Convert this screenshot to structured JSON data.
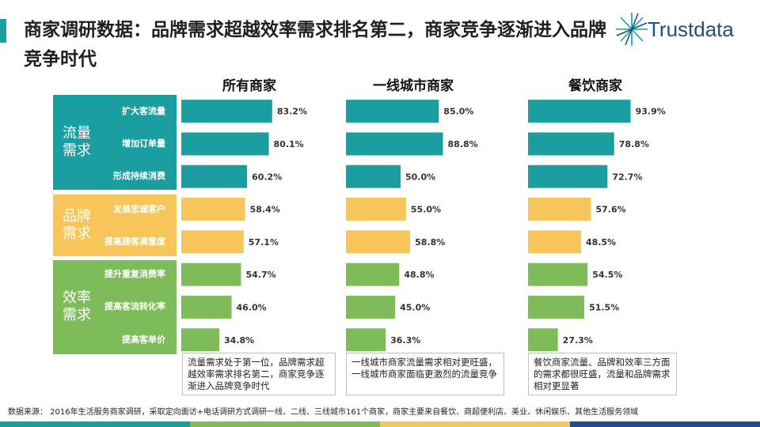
{
  "title": "商家调研数据：品牌需求超越效率需求排名第二，商家竞争逐渐进入品牌竞争时代",
  "logo": {
    "text": "Trustdata"
  },
  "groups": [
    {
      "name": "流量\n需求",
      "color": "#1a9ea0",
      "items": [
        "扩大客流量",
        "增加订单量",
        "形成持续消费"
      ]
    },
    {
      "name": "品牌\n需求",
      "color": "#f7c55a",
      "items": [
        "发展忠诚客户",
        "提高顾客满意度"
      ]
    },
    {
      "name": "效率\n需求",
      "color": "#7ebc59",
      "items": [
        "提升重复消费率",
        "提高客流转化率",
        "提高客单价"
      ]
    }
  ],
  "chart_data": {
    "type": "bar",
    "orientation": "horizontal",
    "categories": [
      "扩大客流量",
      "增加订单量",
      "形成持续消费",
      "发展忠诚客户",
      "提高顾客满意度",
      "提升重复消费率",
      "提高客流转化率",
      "提高客单价"
    ],
    "category_groups": [
      "流量需求",
      "流量需求",
      "流量需求",
      "品牌需求",
      "品牌需求",
      "效率需求",
      "效率需求",
      "效率需求"
    ],
    "unit": "%",
    "series": [
      {
        "name": "所有商家",
        "values": [
          83.2,
          80.1,
          60.2,
          58.4,
          57.1,
          54.7,
          46.0,
          34.8
        ]
      },
      {
        "name": "一线城市商家",
        "values": [
          85.0,
          88.8,
          50.0,
          55.0,
          58.8,
          48.8,
          45.0,
          36.3
        ]
      },
      {
        "name": "餐饮商家",
        "values": [
          93.9,
          78.8,
          72.7,
          57.6,
          48.5,
          54.5,
          51.5,
          27.3
        ]
      }
    ],
    "colors": {
      "流量需求": "#1a9ea0",
      "品牌需求": "#f7c55a",
      "效率需求": "#7ebc59"
    }
  },
  "notes": [
    "流量需求处于第一位，品牌需求超越效率需求排名第二，商家竞争逐渐进入品牌竞争时代",
    "一线城市商家流量需求相对更旺盛，一线城市商家面临更激烈的流量竞争",
    "餐饮商家流量、品牌和效率三方面的需求都很旺盛，流量和品牌需求相对更显著"
  ],
  "footer": "数据来源：  2016年生活服务商家调研，采取定向面访+电话调研方式调研一线、二线、三线城市161个商家，商家主要来自餐饮、商超便利店、美业、休闲娱乐、其他生活服务领域",
  "stripe_colors": [
    "#1a9ea0",
    "#7ebc59",
    "#f7c55a",
    "#1c4f8c"
  ]
}
